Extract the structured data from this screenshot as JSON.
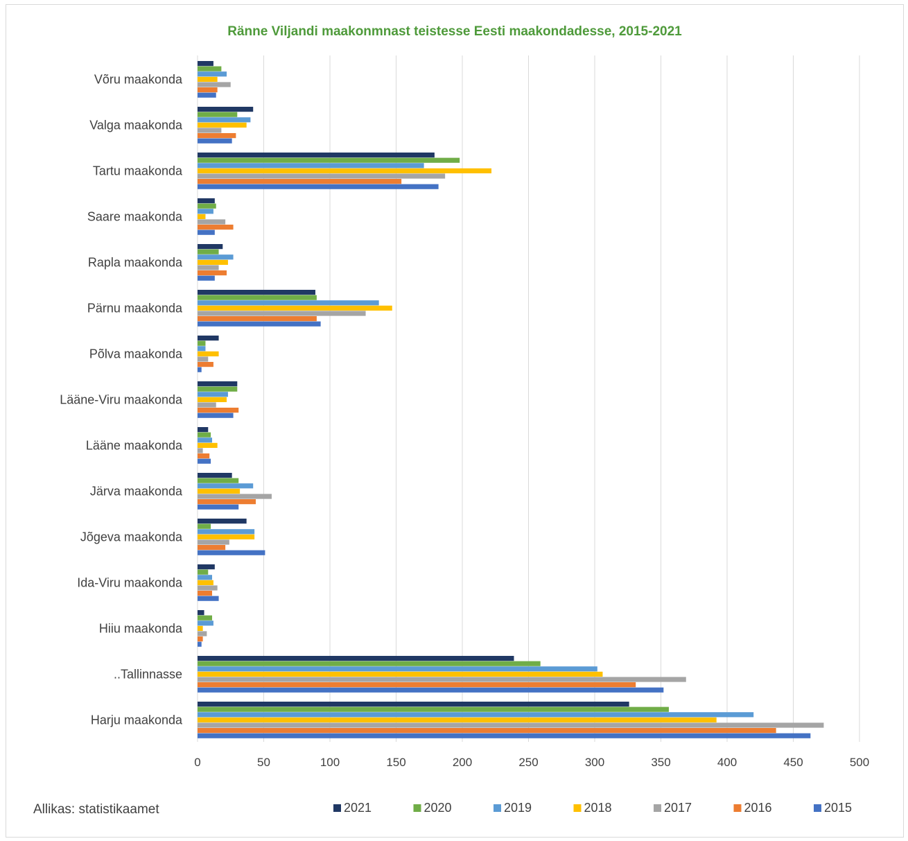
{
  "chart_data": {
    "type": "bar",
    "orientation": "horizontal",
    "title": "Ränne Viljandi maakonmnast teistesse Eesti maakondadesse, 2015-2021",
    "source_note": "Allikas: statistikaamet",
    "categories": [
      "Võru maakonda",
      "Valga maakonda",
      "Tartu maakonda",
      "Saare maakonda",
      "Rapla maakonda",
      "Pärnu maakonda",
      "Põlva maakonda",
      "Lääne-Viru maakonda",
      "Lääne maakonda",
      "Järva maakonda",
      "Jõgeva maakonda",
      "Ida-Viru maakonda",
      "Hiiu maakonda",
      "..Tallinnasse",
      "Harju maakonda"
    ],
    "xlim": [
      0,
      500
    ],
    "x_ticks": [
      0,
      50,
      100,
      150,
      200,
      250,
      300,
      350,
      400,
      450,
      500
    ],
    "x_tick_labels": [
      "0",
      "50",
      "100",
      "150",
      "200",
      "250",
      "300",
      "350",
      "400",
      "450",
      "500"
    ],
    "grid": "vertical",
    "legend_position": "bottom",
    "series": [
      {
        "name": "2021",
        "color": "#203864",
        "values": [
          12,
          42,
          179,
          13,
          19,
          89,
          16,
          30,
          8,
          26,
          37,
          13,
          5,
          239,
          326
        ]
      },
      {
        "name": "2020",
        "color": "#70ad47",
        "values": [
          18,
          30,
          198,
          14,
          16,
          90,
          6,
          30,
          10,
          31,
          10,
          8,
          11,
          259,
          356
        ]
      },
      {
        "name": "2019",
        "color": "#5b9bd5",
        "values": [
          22,
          40,
          171,
          12,
          27,
          137,
          6,
          23,
          11,
          42,
          43,
          11,
          12,
          302,
          420
        ]
      },
      {
        "name": "2018",
        "color": "#ffc000",
        "values": [
          15,
          37,
          222,
          6,
          23,
          147,
          16,
          22,
          15,
          32,
          43,
          12,
          4,
          306,
          392
        ]
      },
      {
        "name": "2017",
        "color": "#a5a5a5",
        "values": [
          25,
          18,
          187,
          21,
          16,
          127,
          8,
          14,
          4,
          56,
          24,
          15,
          7,
          369,
          473
        ]
      },
      {
        "name": "2016",
        "color": "#ed7d31",
        "values": [
          15,
          29,
          154,
          27,
          22,
          90,
          12,
          31,
          9,
          44,
          21,
          11,
          4,
          331,
          437
        ]
      },
      {
        "name": "2015",
        "color": "#4472c4",
        "values": [
          14,
          26,
          182,
          13,
          13,
          93,
          3,
          27,
          10,
          31,
          51,
          16,
          3,
          352,
          463
        ]
      }
    ]
  }
}
